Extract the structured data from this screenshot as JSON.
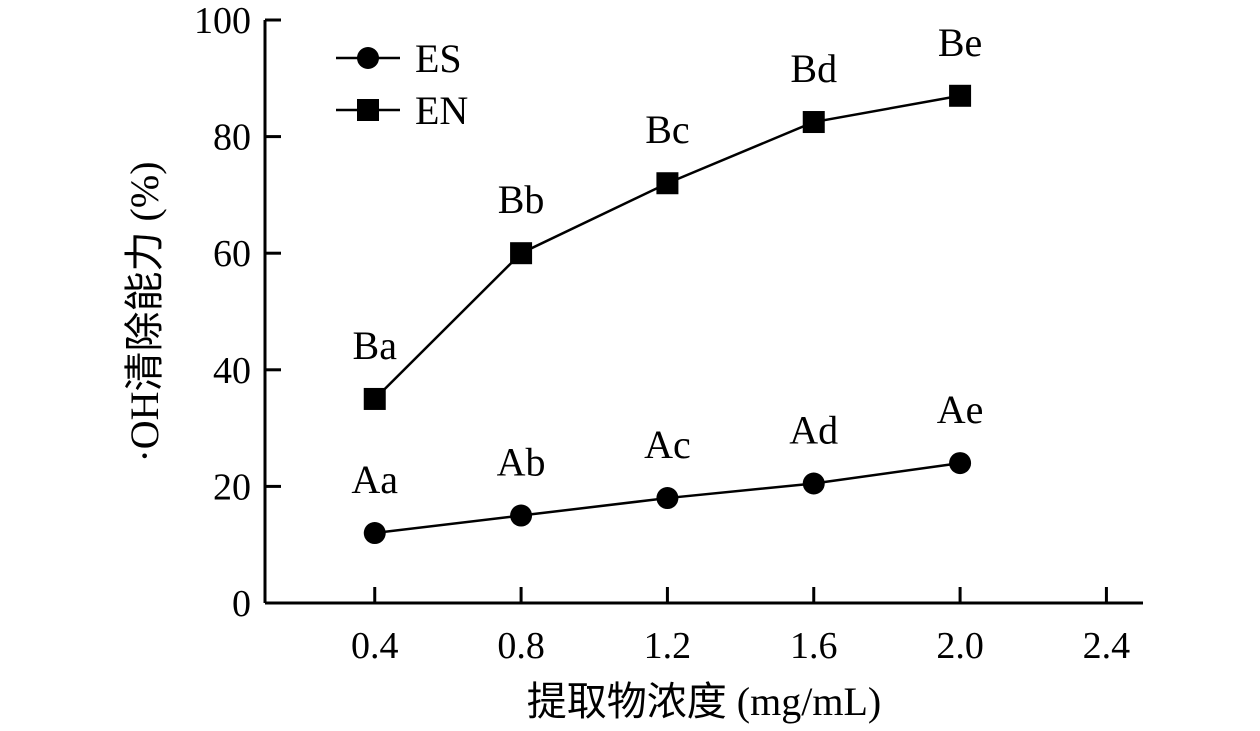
{
  "chart_data": {
    "type": "line",
    "title": "",
    "xlabel": "提取物浓度 (mg/mL)",
    "ylabel": "·OH清除能力 (%)",
    "x_ticks": [
      "0.4",
      "0.8",
      "1.2",
      "1.6",
      "2.0",
      "2.4"
    ],
    "x_tick_values": [
      0.4,
      0.8,
      1.2,
      1.6,
      2.0,
      2.4
    ],
    "y_ticks": [
      "0",
      "20",
      "40",
      "60",
      "80",
      "100"
    ],
    "y_tick_values": [
      0,
      20,
      40,
      60,
      80,
      100
    ],
    "xlim": [
      0.1,
      2.5
    ],
    "ylim": [
      0,
      100
    ],
    "grid": false,
    "legend_position": "top-left",
    "series": [
      {
        "name": "ES",
        "marker": "circle",
        "x": [
          0.4,
          0.8,
          1.2,
          1.6,
          2.0
        ],
        "values": [
          12,
          15,
          18,
          20.5,
          24
        ],
        "labels": [
          "Aa",
          "Ab",
          "Ac",
          "Ad",
          "Ae"
        ]
      },
      {
        "name": "EN",
        "marker": "square",
        "x": [
          0.4,
          0.8,
          1.2,
          1.6,
          2.0
        ],
        "values": [
          35,
          60,
          72,
          82.5,
          87
        ],
        "labels": [
          "Ba",
          "Bb",
          "Bc",
          "Bd",
          "Be"
        ]
      }
    ],
    "colors": {
      "line": "#000000",
      "marker": "#000000"
    }
  }
}
